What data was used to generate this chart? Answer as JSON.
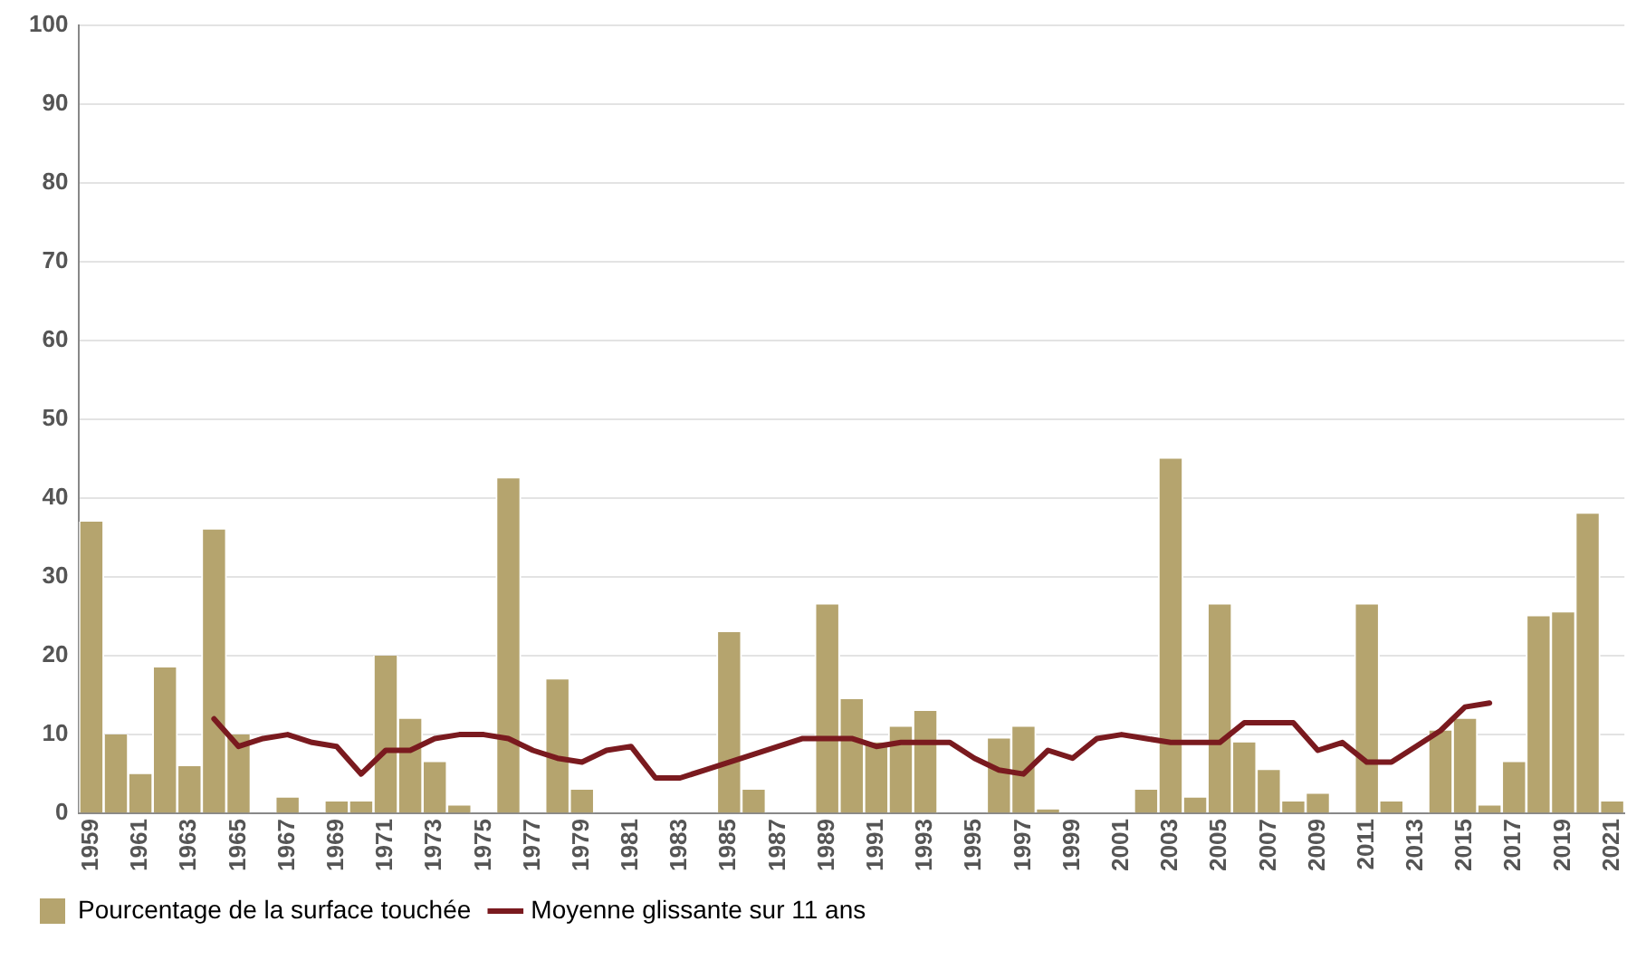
{
  "chart_data": {
    "type": "bar",
    "categories": [
      "1959",
      null,
      "1961",
      null,
      "1963",
      null,
      "1965",
      null,
      "1967",
      null,
      "1969",
      null,
      "1971",
      null,
      "1973",
      null,
      "1975",
      null,
      "1977",
      null,
      "1979",
      null,
      "1981",
      null,
      "1983",
      null,
      "1985",
      null,
      "1987",
      null,
      "1989",
      null,
      "1991",
      null,
      "1993",
      null,
      "1995",
      null,
      "1997",
      null,
      "1999",
      null,
      "2001",
      null,
      "2003",
      null,
      "2005",
      null,
      "2007",
      null,
      "2009",
      null,
      "2011",
      null,
      "2013",
      null,
      "2015",
      null,
      "2017",
      null,
      "2019",
      null,
      "2021"
    ],
    "series": [
      {
        "name": "Pourcentage de la surface touchée",
        "color": "#b5a46e",
        "values": [
          37,
          10,
          5,
          18.5,
          6,
          36,
          10,
          0,
          2,
          0,
          1.5,
          1.5,
          20,
          12,
          6.5,
          1,
          0,
          42.5,
          0,
          17,
          3,
          0,
          0,
          0,
          0,
          0,
          23,
          3,
          0,
          0,
          26.5,
          14.5,
          9,
          11,
          13,
          0,
          0,
          9.5,
          11,
          0.5,
          0,
          0,
          0,
          3,
          45,
          2,
          26.5,
          9,
          5.5,
          1.5,
          2.5,
          0,
          26.5,
          1.5,
          0,
          10.5,
          12,
          1,
          6.5,
          25,
          25.5,
          38,
          1.5
        ]
      },
      {
        "name": "Moyenne glissante sur 11 ans",
        "type": "line",
        "color": "#7a1a1f",
        "values": [
          null,
          null,
          null,
          null,
          null,
          12,
          8.5,
          9.5,
          10,
          9,
          8.5,
          5,
          8,
          8,
          9.5,
          10,
          10,
          9.5,
          8,
          7,
          6.5,
          8,
          8.5,
          4.5,
          4.5,
          5.5,
          6.5,
          7.5,
          8.5,
          9.5,
          9.5,
          9.5,
          8.5,
          9,
          9,
          9,
          7,
          5.5,
          5,
          8,
          7,
          9.5,
          10,
          9.5,
          9,
          9,
          9,
          11.5,
          11.5,
          11.5,
          8,
          9,
          6.5,
          6.5,
          8.5,
          10.5,
          13.5,
          14,
          null,
          null,
          null,
          null,
          null
        ]
      }
    ],
    "ylim": [
      0,
      100
    ],
    "yticks": [
      0,
      10,
      20,
      30,
      40,
      50,
      60,
      70,
      80,
      90,
      100
    ],
    "grid": "y",
    "legend": "bottom left",
    "marker": "none",
    "line_style": "solid"
  }
}
